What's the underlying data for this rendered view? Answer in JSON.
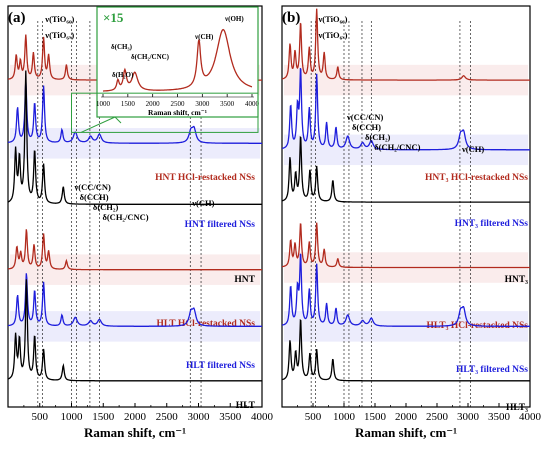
{
  "chart_data": [
    {
      "type": "line",
      "panel_label": "(a)",
      "xlabel": "Raman shift, cm⁻¹",
      "xlim": [
        0,
        4000
      ],
      "x_ticks": [
        "500",
        "1000",
        "1500",
        "2000",
        "2500",
        "3000",
        "3500",
        "4000"
      ],
      "series": [
        {
          "name": "HNT HCl-restacked NSs",
          "color": "#b22b1e",
          "offset": 7.5,
          "peaks": [
            [
              130,
              0.55
            ],
            [
              195,
              0.4
            ],
            [
              280,
              1.0
            ],
            [
              400,
              0.6
            ],
            [
              560,
              0.95
            ],
            [
              640,
              0.55
            ],
            [
              920,
              0.35
            ],
            [
              2920,
              0.12
            ]
          ]
        },
        {
          "name": "HNT filtered NSs",
          "color": "#1e1edc",
          "offset": 6.05,
          "peaks": [
            [
              150,
              0.8
            ],
            [
              280,
              1.4
            ],
            [
              420,
              0.9
            ],
            [
              560,
              1.3
            ],
            [
              850,
              0.3
            ],
            [
              1060,
              0.25
            ],
            [
              1300,
              0.15
            ],
            [
              1440,
              0.2
            ],
            [
              2880,
              0.25
            ],
            [
              2930,
              0.3
            ]
          ]
        },
        {
          "name": "HNT",
          "color": "#000000",
          "offset": 4.65,
          "peaks": [
            [
              120,
              1.2
            ],
            [
              180,
              1.0
            ],
            [
              280,
              3.0
            ],
            [
              420,
              1.2
            ],
            [
              560,
              0.9
            ],
            [
              870,
              0.4
            ]
          ]
        },
        {
          "name": "HLT HCl-restacked NSs",
          "color": "#b22b1e",
          "offset": 3.15,
          "peaks": [
            [
              140,
              0.5
            ],
            [
              200,
              0.35
            ],
            [
              290,
              0.9
            ],
            [
              410,
              0.55
            ],
            [
              560,
              0.8
            ],
            [
              640,
              0.4
            ],
            [
              920,
              0.2
            ]
          ]
        },
        {
          "name": "HLT filtered NSs",
          "color": "#1e1edc",
          "offset": 1.85,
          "peaks": [
            [
              150,
              0.7
            ],
            [
              290,
              1.2
            ],
            [
              420,
              0.8
            ],
            [
              560,
              1.0
            ],
            [
              850,
              0.25
            ],
            [
              1060,
              0.2
            ],
            [
              1300,
              0.12
            ],
            [
              1440,
              0.15
            ],
            [
              2880,
              0.28
            ],
            [
              2930,
              0.32
            ]
          ]
        },
        {
          "name": "HLT",
          "color": "#000000",
          "offset": 0.6,
          "peaks": [
            [
              120,
              1.0
            ],
            [
              180,
              0.9
            ],
            [
              290,
              2.3
            ],
            [
              420,
              1.0
            ],
            [
              560,
              0.7
            ],
            [
              870,
              0.35
            ]
          ]
        }
      ],
      "annotations": [
        "ν(TiO₆₆)",
        "ν(TiO₆ₓ)",
        "ν(CC/CN)",
        "δ(CCH)",
        "δ(CH₂)",
        "δ(CH₂/CNC)",
        "ν(CH)"
      ],
      "inset": {
        "zoom_label": "×15",
        "xlabel": "Raman shift, cm⁻¹",
        "x_ticks": [
          "1000",
          "1500",
          "2000",
          "2500",
          "3000",
          "3500",
          "4000"
        ],
        "labels": [
          "δ(CH₃)",
          "δ(CH₂/CNC)",
          "δ(H₂O)",
          "ν(CH)",
          "ν(OH)"
        ]
      }
    },
    {
      "type": "line",
      "panel_label": "(b)",
      "xlabel": "Raman shift, cm⁻¹",
      "xlim": [
        0,
        4000
      ],
      "x_ticks": [
        "500",
        "1000",
        "1500",
        "2000",
        "2500",
        "3000",
        "3500",
        "4000"
      ],
      "series": [
        {
          "name": "HNT₃ HCl-restacked NSs",
          "color": "#b22b1e",
          "offset": 7.5,
          "peaks": [
            [
              130,
              0.8
            ],
            [
              210,
              0.6
            ],
            [
              300,
              1.3
            ],
            [
              440,
              0.7
            ],
            [
              560,
              1.6
            ],
            [
              680,
              0.6
            ],
            [
              900,
              0.3
            ],
            [
              2930,
              0.1
            ]
          ]
        },
        {
          "name": "HNT₃ filtered NSs",
          "color": "#1e1edc",
          "offset": 5.9,
          "peaks": [
            [
              140,
              1.0
            ],
            [
              250,
              0.9
            ],
            [
              300,
              1.8
            ],
            [
              440,
              0.9
            ],
            [
              560,
              1.7
            ],
            [
              720,
              0.6
            ],
            [
              870,
              0.5
            ],
            [
              1060,
              0.3
            ],
            [
              1300,
              0.15
            ],
            [
              1440,
              0.2
            ],
            [
              2880,
              0.3
            ],
            [
              2930,
              0.35
            ]
          ]
        },
        {
          "name": "HNT₃",
          "color": "#000000",
          "offset": 4.7,
          "peaks": [
            [
              130,
              1.0
            ],
            [
              220,
              0.6
            ],
            [
              300,
              1.5
            ],
            [
              450,
              0.7
            ],
            [
              560,
              0.8
            ],
            [
              820,
              0.5
            ]
          ]
        },
        {
          "name": "HLT₃ HCl-restacked NSs",
          "color": "#b22b1e",
          "offset": 3.2,
          "peaks": [
            [
              140,
              0.6
            ],
            [
              210,
              0.5
            ],
            [
              300,
              1.0
            ],
            [
              440,
              0.55
            ],
            [
              560,
              1.0
            ],
            [
              680,
              0.4
            ],
            [
              900,
              0.2
            ]
          ]
        },
        {
          "name": "HLT₃ filtered NSs",
          "color": "#1e1edc",
          "offset": 1.85,
          "peaks": [
            [
              140,
              0.9
            ],
            [
              250,
              0.8
            ],
            [
              300,
              1.6
            ],
            [
              440,
              0.8
            ],
            [
              560,
              1.4
            ],
            [
              720,
              0.5
            ],
            [
              870,
              0.4
            ],
            [
              1060,
              0.25
            ],
            [
              1300,
              0.12
            ],
            [
              1440,
              0.18
            ],
            [
              2880,
              0.3
            ],
            [
              2930,
              0.35
            ]
          ]
        },
        {
          "name": "HLT₃",
          "color": "#000000",
          "offset": 0.6,
          "peaks": [
            [
              130,
              0.9
            ],
            [
              220,
              0.6
            ],
            [
              300,
              1.4
            ],
            [
              450,
              0.6
            ],
            [
              560,
              0.7
            ],
            [
              820,
              0.5
            ]
          ]
        }
      ],
      "annotations": [
        "ν(TiO₆₆)",
        "ν(TiO₆ₓ)",
        "ν(CC/CN)",
        "δ(CCH)",
        "δ(CH₂)",
        "δ(CH₂/CNC)",
        "ν(CH)"
      ]
    }
  ],
  "colors": {
    "red": "#b22b1e",
    "blue": "#1e1edc",
    "black": "#000000",
    "inset_green": "#2e9e3e",
    "band_red": "#f2c9c9",
    "band_blue": "#c9c9f5"
  }
}
